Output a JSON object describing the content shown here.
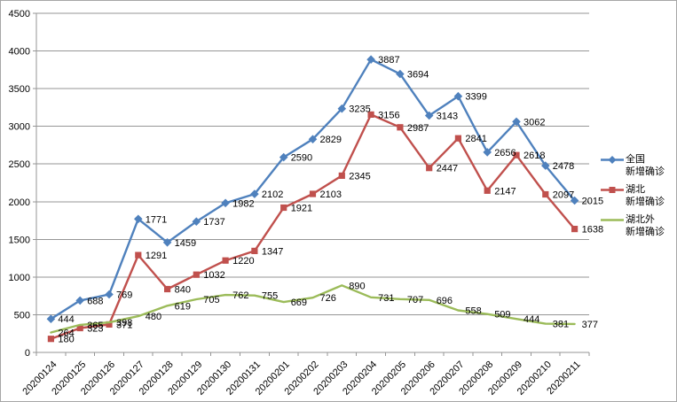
{
  "chart_data": {
    "type": "line",
    "title": "",
    "xlabel": "",
    "ylabel": "",
    "categories": [
      "20200124",
      "20200125",
      "20200126",
      "20200127",
      "20200128",
      "20200129",
      "20200130",
      "20200131",
      "20200201",
      "20200202",
      "20200203",
      "20200204",
      "20200205",
      "20200206",
      "20200207",
      "20200208",
      "20200209",
      "20200210",
      "20200211"
    ],
    "series": [
      {
        "id": "national",
        "name": "全国新增确诊",
        "name_lines": [
          "全国",
          "新增确诊"
        ],
        "color": "#4F81BD",
        "marker": "diamond",
        "values": [
          444,
          688,
          769,
          1771,
          1459,
          1737,
          1982,
          2102,
          2590,
          2829,
          3235,
          3887,
          3694,
          3143,
          3399,
          2656,
          3062,
          2478,
          2015
        ]
      },
      {
        "id": "hubei",
        "name": "湖北新增确诊",
        "name_lines": [
          "湖北",
          "新增确诊"
        ],
        "color": "#C0504D",
        "marker": "square",
        "values": [
          180,
          323,
          371,
          1291,
          840,
          1032,
          1220,
          1347,
          1921,
          2103,
          2345,
          3156,
          2987,
          2447,
          2841,
          2147,
          2618,
          2097,
          1638
        ]
      },
      {
        "id": "outside-hubei",
        "name": "湖北外新增确诊",
        "name_lines": [
          "湖北外",
          "新增确诊"
        ],
        "color": "#9BBB59",
        "marker": "none",
        "values": [
          264,
          365,
          398,
          480,
          619,
          705,
          762,
          755,
          669,
          726,
          890,
          731,
          707,
          696,
          558,
          509,
          444,
          381,
          377
        ]
      }
    ],
    "ylim": [
      0,
      4500
    ],
    "ytick_step": 500,
    "grid": true,
    "data_labels": true,
    "legend_position": "right",
    "colors": {
      "gridline": "#969696",
      "axis": "#969696",
      "label_text": "#000000",
      "border": "#a6a6a6",
      "background": "#ffffff"
    }
  }
}
